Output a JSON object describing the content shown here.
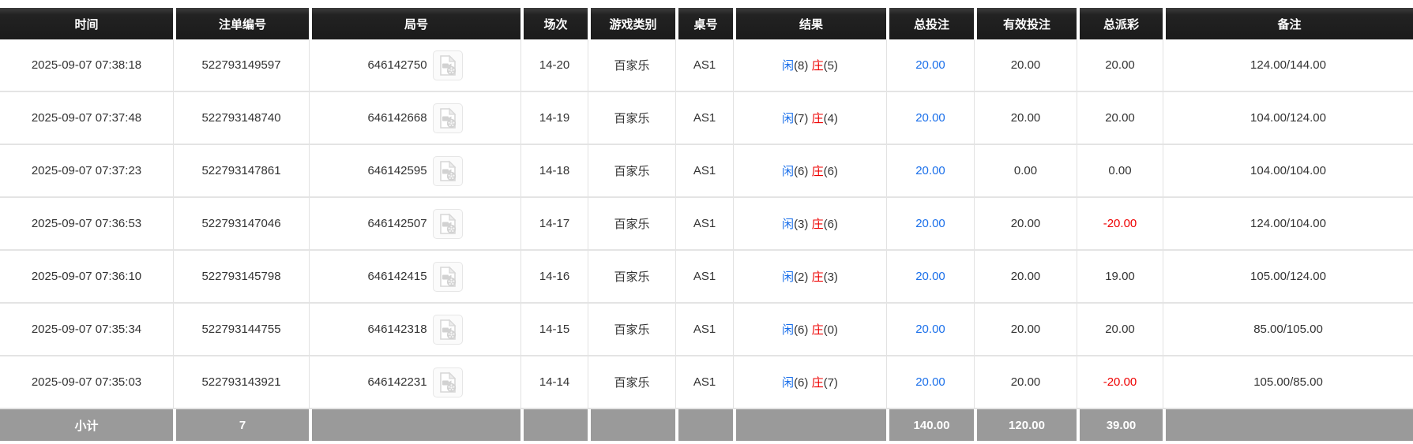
{
  "colors": {
    "accent_blue": "#1a6fea",
    "negative_red": "#ee0000",
    "header_bg": "#1d1d1d",
    "footer_bg": "#9a9a9a"
  },
  "table": {
    "columns": [
      {
        "key": "time",
        "label": "时间"
      },
      {
        "key": "bet_id",
        "label": "注单编号"
      },
      {
        "key": "round_id",
        "label": "局号"
      },
      {
        "key": "session",
        "label": "场次"
      },
      {
        "key": "game_type",
        "label": "游戏类别"
      },
      {
        "key": "table_no",
        "label": "桌号"
      },
      {
        "key": "result",
        "label": "结果"
      },
      {
        "key": "total_bet",
        "label": "总投注"
      },
      {
        "key": "valid_bet",
        "label": "有效投注"
      },
      {
        "key": "total_payout",
        "label": "总派彩"
      },
      {
        "key": "remark",
        "label": "备注"
      }
    ],
    "result_labels": {
      "player": "闲",
      "banker": "庄"
    },
    "video_icon": "video-file-icon",
    "rows": [
      {
        "time": "2025-09-07 07:38:18",
        "bet_id": "522793149597",
        "round_id": "646142750",
        "session": "14-20",
        "game_type": "百家乐",
        "table_no": "AS1",
        "player": "8",
        "banker": "5",
        "total_bet": "20.00",
        "valid_bet": "20.00",
        "total_payout": "20.00",
        "remark": "124.00/144.00"
      },
      {
        "time": "2025-09-07 07:37:48",
        "bet_id": "522793148740",
        "round_id": "646142668",
        "session": "14-19",
        "game_type": "百家乐",
        "table_no": "AS1",
        "player": "7",
        "banker": "4",
        "total_bet": "20.00",
        "valid_bet": "20.00",
        "total_payout": "20.00",
        "remark": "104.00/124.00"
      },
      {
        "time": "2025-09-07 07:37:23",
        "bet_id": "522793147861",
        "round_id": "646142595",
        "session": "14-18",
        "game_type": "百家乐",
        "table_no": "AS1",
        "player": "6",
        "banker": "6",
        "total_bet": "20.00",
        "valid_bet": "0.00",
        "total_payout": "0.00",
        "remark": "104.00/104.00"
      },
      {
        "time": "2025-09-07 07:36:53",
        "bet_id": "522793147046",
        "round_id": "646142507",
        "session": "14-17",
        "game_type": "百家乐",
        "table_no": "AS1",
        "player": "3",
        "banker": "6",
        "total_bet": "20.00",
        "valid_bet": "20.00",
        "total_payout": "-20.00",
        "remark": "124.00/104.00"
      },
      {
        "time": "2025-09-07 07:36:10",
        "bet_id": "522793145798",
        "round_id": "646142415",
        "session": "14-16",
        "game_type": "百家乐",
        "table_no": "AS1",
        "player": "2",
        "banker": "3",
        "total_bet": "20.00",
        "valid_bet": "20.00",
        "total_payout": "19.00",
        "remark": "105.00/124.00"
      },
      {
        "time": "2025-09-07 07:35:34",
        "bet_id": "522793144755",
        "round_id": "646142318",
        "session": "14-15",
        "game_type": "百家乐",
        "table_no": "AS1",
        "player": "6",
        "banker": "0",
        "total_bet": "20.00",
        "valid_bet": "20.00",
        "total_payout": "20.00",
        "remark": "85.00/105.00"
      },
      {
        "time": "2025-09-07 07:35:03",
        "bet_id": "522793143921",
        "round_id": "646142231",
        "session": "14-14",
        "game_type": "百家乐",
        "table_no": "AS1",
        "player": "6",
        "banker": "7",
        "total_bet": "20.00",
        "valid_bet": "20.00",
        "total_payout": "-20.00",
        "remark": "105.00/85.00"
      }
    ],
    "footer": {
      "label": "小计",
      "count": "7",
      "total_bet": "140.00",
      "valid_bet": "120.00",
      "total_payout": "39.00"
    }
  }
}
